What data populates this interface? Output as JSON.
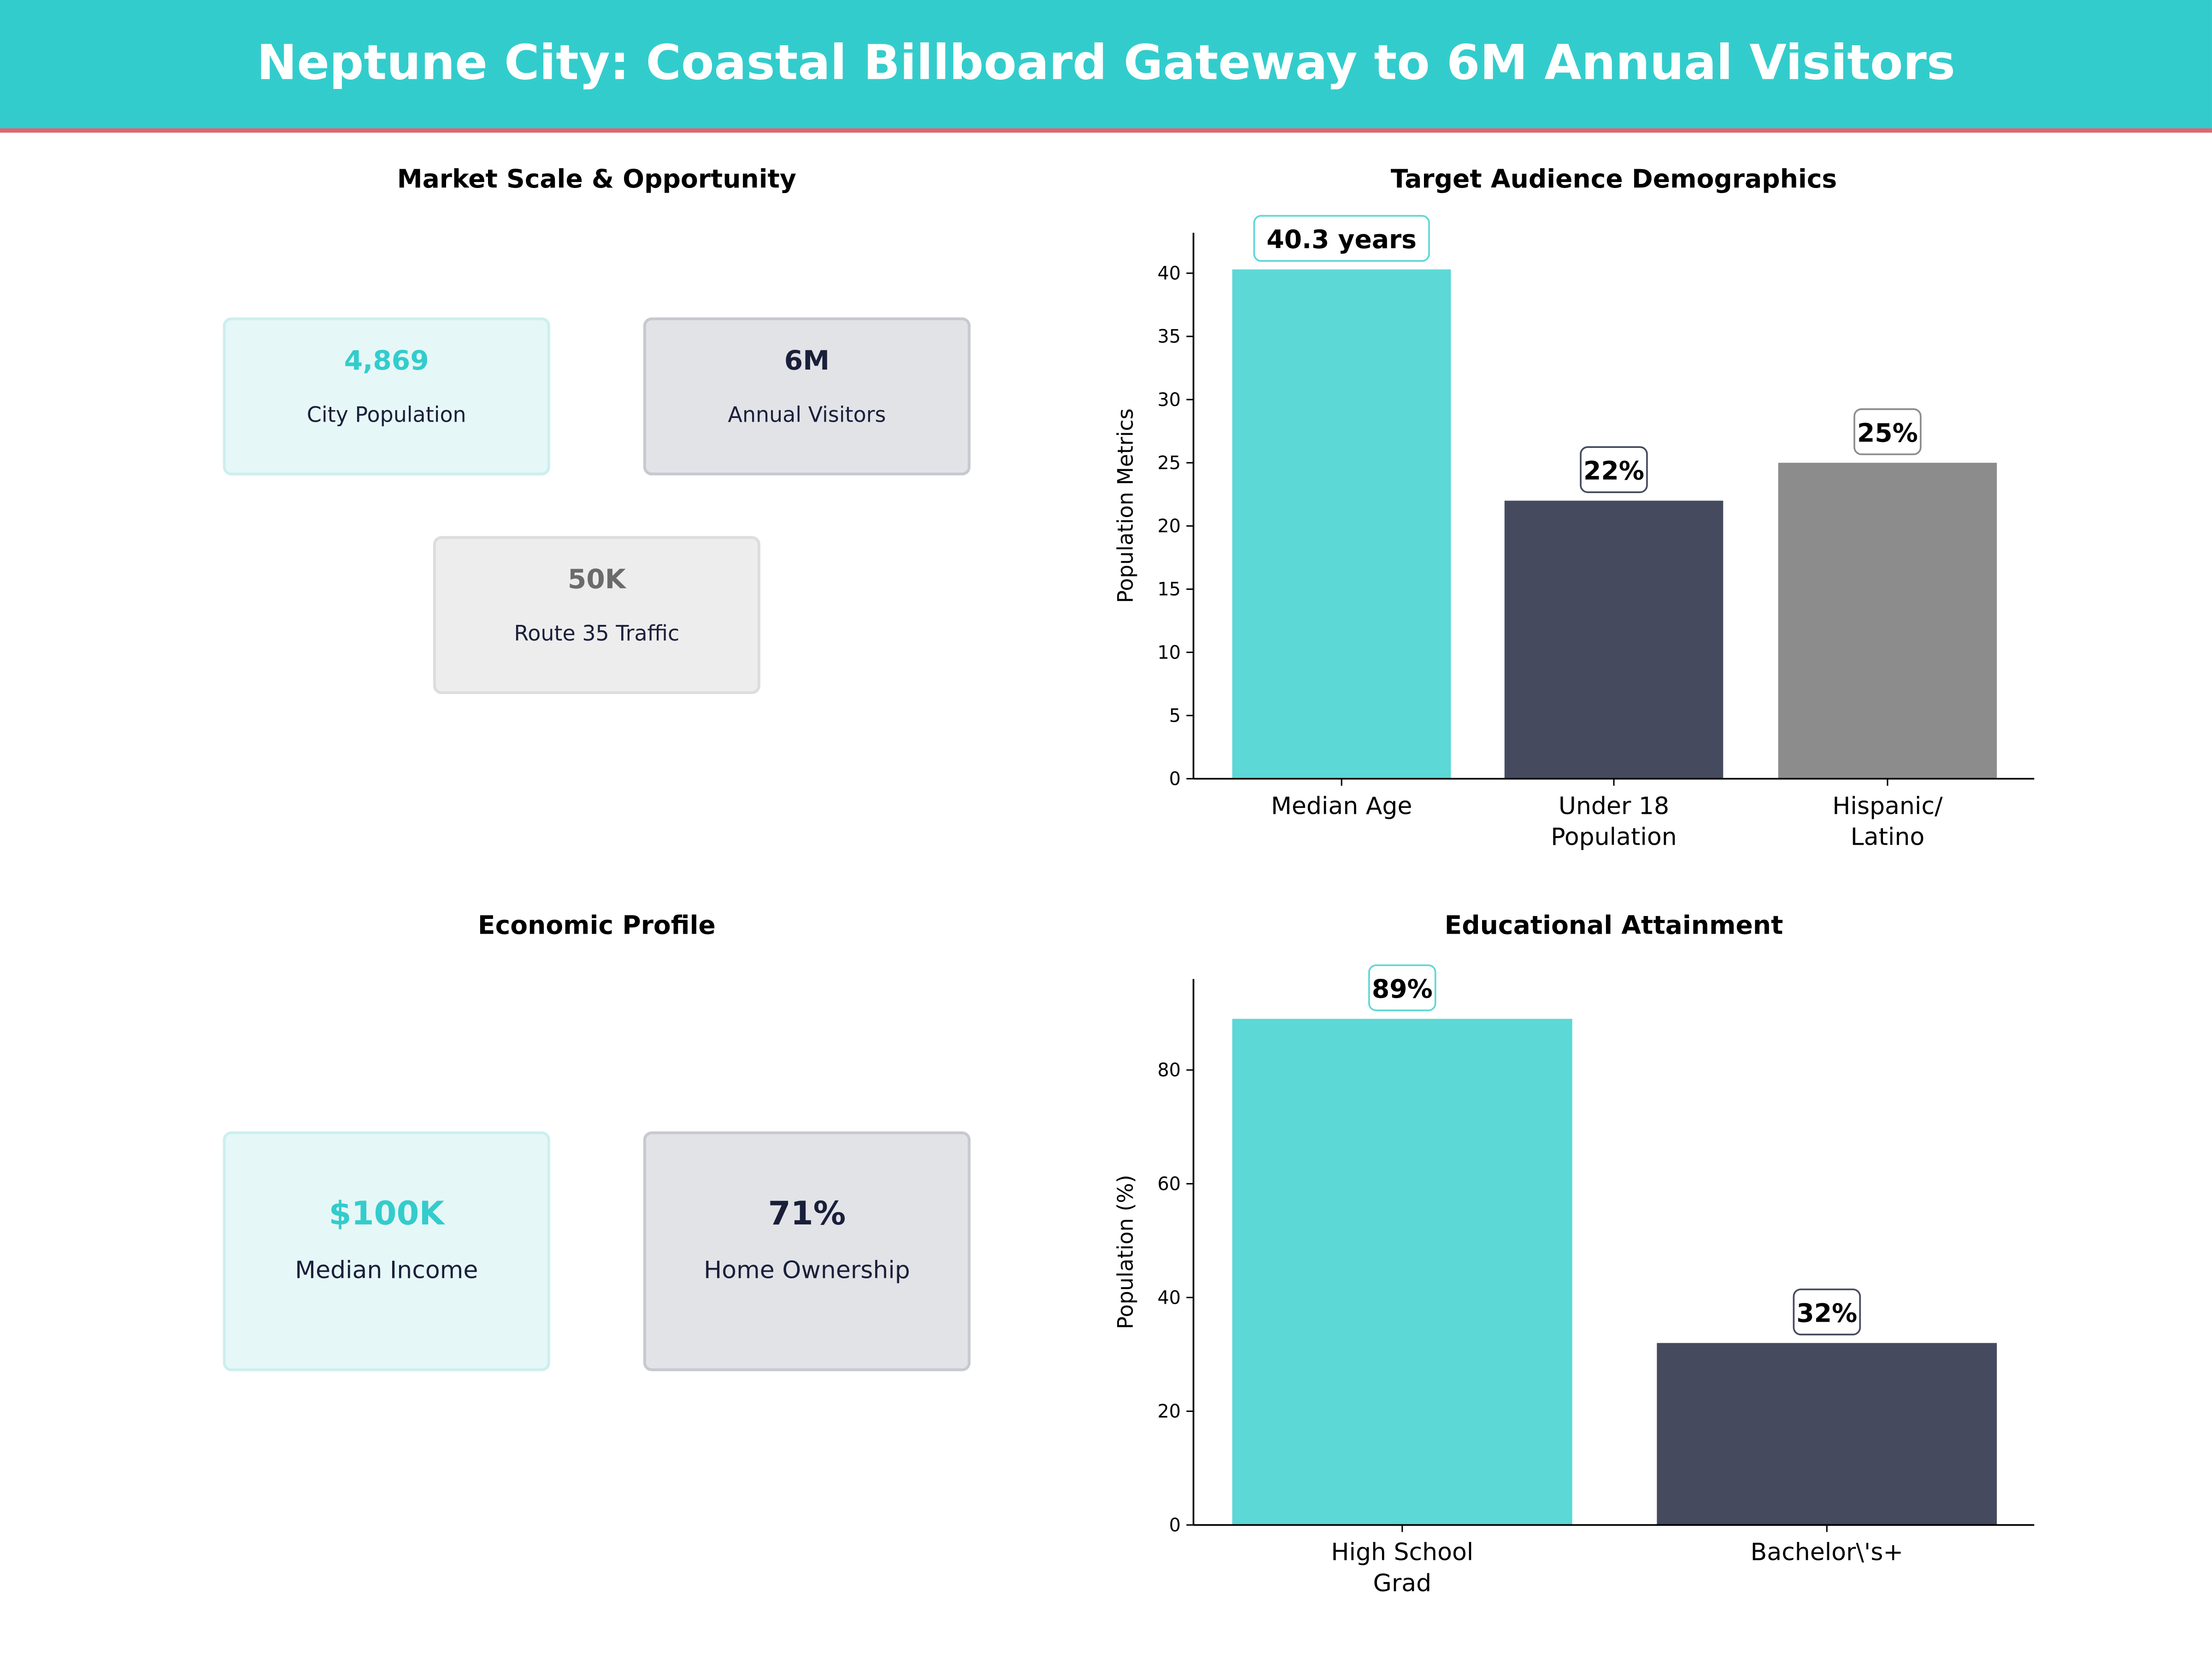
{
  "header": {
    "title": "Neptune City: Coastal Billboard Gateway to 6M Annual Visitors"
  },
  "colors": {
    "header_bg": "#33CCCC",
    "header_rule": "#E8616F",
    "teal": "#5CD8D6",
    "navy": "#454A5F",
    "gray": "#8C8C8C"
  },
  "market": {
    "title": "Market Scale & Opportunity",
    "cards": [
      {
        "value": "4,869",
        "label": "City Population"
      },
      {
        "value": "6M",
        "label": "Annual Visitors"
      },
      {
        "value": "50K",
        "label": "Route 35 Traffic"
      }
    ]
  },
  "economic": {
    "title": "Economic Profile",
    "cards": [
      {
        "value": "$100K",
        "label": "Median Income"
      },
      {
        "value": "71%",
        "label": "Home Ownership"
      }
    ]
  },
  "chart_data": [
    {
      "type": "bar",
      "title": "Target Audience Demographics",
      "ylabel": "Population Metrics",
      "xlabel": "",
      "categories": [
        "Median Age",
        "Under 18\nPopulation",
        "Hispanic/\nLatino"
      ],
      "values": [
        40.3,
        22,
        25
      ],
      "data_labels": [
        "40.3 years",
        "22%",
        "25%"
      ],
      "colors": [
        "#5CD8D6",
        "#454A5F",
        "#8C8C8C"
      ],
      "ylim": [
        0,
        43.2
      ],
      "yticks": [
        0,
        5,
        10,
        15,
        20,
        25,
        30,
        35,
        40
      ],
      "grid": false
    },
    {
      "type": "bar",
      "title": "Educational Attainment",
      "ylabel": "Population (%)",
      "xlabel": "",
      "categories": [
        "High School\nGrad",
        "Bachelor\\'s+"
      ],
      "values": [
        89,
        32
      ],
      "data_labels": [
        "89%",
        "32%"
      ],
      "colors": [
        "#5CD8D6",
        "#454A5F"
      ],
      "ylim": [
        0,
        96
      ],
      "yticks": [
        0,
        20,
        40,
        60,
        80
      ],
      "grid": false
    }
  ]
}
